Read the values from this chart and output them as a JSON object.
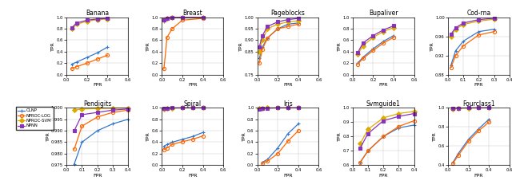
{
  "subplots": [
    {
      "title": "Banana",
      "xlim": [
        0,
        0.6
      ],
      "ylim": [
        0,
        1
      ],
      "xticks": [
        0,
        0.2,
        0.4,
        0.6
      ],
      "yticks": [
        0,
        0.2,
        0.4,
        0.6,
        0.8,
        1.0
      ],
      "series": {
        "OLNP": {
          "x": [
            0.05,
            0.1,
            0.2,
            0.3,
            0.4
          ],
          "y": [
            0.18,
            0.22,
            0.3,
            0.38,
            0.48
          ]
        },
        "NPROC-LOG": {
          "x": [
            0.05,
            0.1,
            0.2,
            0.3,
            0.4
          ],
          "y": [
            0.1,
            0.14,
            0.2,
            0.27,
            0.34
          ]
        },
        "NPROC-SVM": {
          "x": [
            0.05,
            0.1,
            0.2,
            0.3,
            0.4
          ],
          "y": [
            0.8,
            0.88,
            0.93,
            0.96,
            0.97
          ]
        },
        "NPNN": {
          "x": [
            0.05,
            0.1,
            0.2,
            0.3,
            0.4
          ],
          "y": [
            0.82,
            0.9,
            0.95,
            0.97,
            0.98
          ]
        }
      }
    },
    {
      "title": "Breast",
      "xlim": [
        0,
        0.6
      ],
      "ylim": [
        0,
        1
      ],
      "xticks": [
        0,
        0.2,
        0.4,
        0.6
      ],
      "yticks": [
        0,
        0.2,
        0.4,
        0.6,
        0.8,
        1.0
      ],
      "series": {
        "OLNP": {
          "x": [
            0.02,
            0.05,
            0.1,
            0.2,
            0.4
          ],
          "y": [
            0.93,
            0.97,
            0.99,
            0.995,
            0.998
          ]
        },
        "NPROC-LOG": {
          "x": [
            0.02,
            0.05,
            0.1,
            0.2,
            0.4
          ],
          "y": [
            0.1,
            0.65,
            0.8,
            0.95,
            0.98
          ]
        },
        "NPROC-SVM": {
          "x": [
            0.02,
            0.05,
            0.1,
            0.2,
            0.4
          ],
          "y": [
            0.95,
            0.98,
            0.995,
            0.998,
            0.999
          ]
        },
        "NPNN": {
          "x": [
            0.02,
            0.05,
            0.1,
            0.2,
            0.4
          ],
          "y": [
            0.95,
            0.985,
            0.995,
            0.998,
            0.999
          ]
        }
      }
    },
    {
      "title": "Pageblocks",
      "xlim": [
        0,
        0.6
      ],
      "ylim": [
        0.75,
        1.0
      ],
      "xticks": [
        0,
        0.2,
        0.4,
        0.6
      ],
      "yticks": [
        0.75,
        0.85,
        0.9,
        0.95,
        1.0
      ],
      "series": {
        "OLNP": {
          "x": [
            0.02,
            0.05,
            0.1,
            0.2,
            0.3,
            0.4
          ],
          "y": [
            0.82,
            0.87,
            0.91,
            0.95,
            0.97,
            0.975
          ]
        },
        "NPROC-LOG": {
          "x": [
            0.02,
            0.05,
            0.1,
            0.2,
            0.3,
            0.4
          ],
          "y": [
            0.8,
            0.86,
            0.91,
            0.95,
            0.96,
            0.97
          ]
        },
        "NPROC-SVM": {
          "x": [
            0.02,
            0.05,
            0.1,
            0.2,
            0.3,
            0.4
          ],
          "y": [
            0.85,
            0.9,
            0.95,
            0.97,
            0.98,
            0.985
          ]
        },
        "NPNN": {
          "x": [
            0.02,
            0.05,
            0.1,
            0.2,
            0.3,
            0.4
          ],
          "y": [
            0.87,
            0.92,
            0.96,
            0.98,
            0.99,
            0.995
          ]
        }
      }
    },
    {
      "title": "Bupaliver",
      "xlim": [
        0,
        0.6
      ],
      "ylim": [
        0,
        1.0
      ],
      "xticks": [
        0,
        0.2,
        0.4,
        0.6
      ],
      "yticks": [
        0,
        0.2,
        0.4,
        0.6,
        0.8,
        1.0
      ],
      "series": {
        "OLNP": {
          "x": [
            0.05,
            0.1,
            0.2,
            0.3,
            0.4
          ],
          "y": [
            0.2,
            0.3,
            0.45,
            0.58,
            0.68
          ]
        },
        "NPROC-LOG": {
          "x": [
            0.05,
            0.1,
            0.2,
            0.3,
            0.4
          ],
          "y": [
            0.18,
            0.28,
            0.42,
            0.55,
            0.65
          ]
        },
        "NPROC-SVM": {
          "x": [
            0.05,
            0.1,
            0.2,
            0.3,
            0.4
          ],
          "y": [
            0.35,
            0.5,
            0.65,
            0.75,
            0.82
          ]
        },
        "NPNN": {
          "x": [
            0.05,
            0.1,
            0.2,
            0.3,
            0.4
          ],
          "y": [
            0.38,
            0.55,
            0.68,
            0.78,
            0.85
          ]
        }
      }
    },
    {
      "title": "Cod-rna",
      "xlim": [
        0,
        0.4
      ],
      "ylim": [
        0.88,
        1.0
      ],
      "xticks": [
        0,
        0.1,
        0.2,
        0.3,
        0.4
      ],
      "yticks": [
        0.88,
        0.92,
        0.96,
        1.0
      ],
      "series": {
        "OLNP": {
          "x": [
            0.02,
            0.05,
            0.1,
            0.2,
            0.3
          ],
          "y": [
            0.9,
            0.93,
            0.95,
            0.97,
            0.975
          ]
        },
        "NPROC-LOG": {
          "x": [
            0.02,
            0.05,
            0.1,
            0.2,
            0.3
          ],
          "y": [
            0.895,
            0.92,
            0.94,
            0.963,
            0.97
          ]
        },
        "NPROC-SVM": {
          "x": [
            0.02,
            0.05,
            0.1,
            0.2,
            0.3
          ],
          "y": [
            0.96,
            0.975,
            0.985,
            0.992,
            0.996
          ]
        },
        "NPNN": {
          "x": [
            0.02,
            0.05,
            0.1,
            0.2,
            0.3
          ],
          "y": [
            0.965,
            0.978,
            0.988,
            0.995,
            0.998
          ]
        }
      }
    },
    {
      "title": "Pendigits",
      "xlim": [
        0,
        0.4
      ],
      "ylim": [
        0.975,
        1.0
      ],
      "xticks": [
        0,
        0.1,
        0.2,
        0.3,
        0.4
      ],
      "yticks": [
        0.975,
        0.98,
        0.985,
        0.99,
        0.995,
        1.0
      ],
      "series": {
        "OLNP": {
          "x": [
            0.05,
            0.1,
            0.2,
            0.3,
            0.4
          ],
          "y": [
            0.9755,
            0.985,
            0.99,
            0.993,
            0.995
          ]
        },
        "NPROC-LOG": {
          "x": [
            0.05,
            0.1,
            0.2,
            0.3,
            0.4
          ],
          "y": [
            0.982,
            0.992,
            0.996,
            0.998,
            0.999
          ]
        },
        "NPROC-SVM": {
          "x": [
            0.05,
            0.1,
            0.2,
            0.3,
            0.4
          ],
          "y": [
            0.999,
            0.9995,
            0.9997,
            0.9998,
            0.9999
          ]
        },
        "NPNN": {
          "x": [
            0.05,
            0.1,
            0.2,
            0.3,
            0.4
          ],
          "y": [
            0.99,
            0.997,
            0.998,
            0.999,
            0.9995
          ]
        }
      }
    },
    {
      "title": "Spiral",
      "xlim": [
        0,
        0.6
      ],
      "ylim": [
        0,
        1
      ],
      "xticks": [
        0,
        0.2,
        0.4,
        0.6
      ],
      "yticks": [
        0,
        0.2,
        0.4,
        0.6,
        0.8,
        1.0
      ],
      "series": {
        "OLNP": {
          "x": [
            0.02,
            0.05,
            0.1,
            0.2,
            0.3,
            0.4
          ],
          "y": [
            0.33,
            0.36,
            0.4,
            0.45,
            0.5,
            0.57
          ]
        },
        "NPROC-LOG": {
          "x": [
            0.02,
            0.05,
            0.1,
            0.2,
            0.3,
            0.4
          ],
          "y": [
            0.27,
            0.3,
            0.36,
            0.41,
            0.45,
            0.51
          ]
        },
        "NPROC-SVM": {
          "x": [
            0.02,
            0.05,
            0.1,
            0.2,
            0.3,
            0.4
          ],
          "y": [
            0.98,
            0.99,
            0.995,
            0.998,
            0.999,
            1.0
          ]
        },
        "NPNN": {
          "x": [
            0.02,
            0.05,
            0.1,
            0.2,
            0.3,
            0.4
          ],
          "y": [
            0.995,
            0.997,
            0.998,
            0.999,
            0.999,
            1.0
          ]
        }
      }
    },
    {
      "title": "Iris",
      "xlim": [
        0,
        0.6
      ],
      "ylim": [
        0,
        1
      ],
      "xticks": [
        0,
        0.2,
        0.4,
        0.6
      ],
      "yticks": [
        0,
        0.2,
        0.4,
        0.6,
        0.8,
        1.0
      ],
      "series": {
        "OLNP": {
          "x": [
            0.05,
            0.1,
            0.2,
            0.3,
            0.4
          ],
          "y": [
            0.05,
            0.1,
            0.3,
            0.55,
            0.72
          ]
        },
        "NPROC-LOG": {
          "x": [
            0.05,
            0.1,
            0.2,
            0.3,
            0.4
          ],
          "y": [
            0.03,
            0.07,
            0.2,
            0.42,
            0.6
          ]
        },
        "NPROC-SVM": {
          "x": [
            0.02,
            0.05,
            0.1,
            0.2,
            0.3,
            0.4
          ],
          "y": [
            0.99,
            0.995,
            0.998,
            0.999,
            0.9995,
            1.0
          ]
        },
        "NPNN": {
          "x": [
            0.02,
            0.05,
            0.1,
            0.2,
            0.3,
            0.4
          ],
          "y": [
            0.98,
            0.99,
            0.995,
            0.998,
            0.999,
            1.0
          ]
        }
      }
    },
    {
      "title": "Svmguide1",
      "xlim": [
        0,
        0.4
      ],
      "ylim": [
        0.6,
        1.0
      ],
      "xticks": [
        0,
        0.1,
        0.2,
        0.3,
        0.4
      ],
      "yticks": [
        0.6,
        0.7,
        0.8,
        0.9,
        1.0
      ],
      "series": {
        "OLNP": {
          "x": [
            0.05,
            0.1,
            0.2,
            0.3,
            0.4
          ],
          "y": [
            0.62,
            0.7,
            0.8,
            0.86,
            0.88
          ]
        },
        "NPROC-LOG": {
          "x": [
            0.05,
            0.1,
            0.2,
            0.3,
            0.4
          ],
          "y": [
            0.62,
            0.7,
            0.8,
            0.87,
            0.91
          ]
        },
        "NPROC-SVM": {
          "x": [
            0.05,
            0.1,
            0.2,
            0.3,
            0.4
          ],
          "y": [
            0.75,
            0.85,
            0.93,
            0.96,
            0.975
          ]
        },
        "NPNN": {
          "x": [
            0.05,
            0.1,
            0.2,
            0.3,
            0.4
          ],
          "y": [
            0.72,
            0.82,
            0.91,
            0.94,
            0.96
          ]
        }
      }
    },
    {
      "title": "Fourclass1",
      "xlim": [
        0,
        0.6
      ],
      "ylim": [
        0.4,
        1.0
      ],
      "xticks": [
        0,
        0.2,
        0.4,
        0.6
      ],
      "yticks": [
        0.4,
        0.6,
        0.8,
        1.0
      ],
      "series": {
        "OLNP": {
          "x": [
            0.05,
            0.1,
            0.2,
            0.3,
            0.4
          ],
          "y": [
            0.43,
            0.52,
            0.67,
            0.78,
            0.88
          ]
        },
        "NPROC-LOG": {
          "x": [
            0.05,
            0.1,
            0.2,
            0.3,
            0.4
          ],
          "y": [
            0.42,
            0.5,
            0.65,
            0.76,
            0.85
          ]
        },
        "NPROC-SVM": {
          "x": [
            0.05,
            0.1,
            0.2,
            0.3,
            0.4
          ],
          "y": [
            0.99,
            0.995,
            0.998,
            0.999,
            0.9995
          ]
        },
        "NPNN": {
          "x": [
            0.05,
            0.1,
            0.2,
            0.3,
            0.4
          ],
          "y": [
            0.995,
            0.997,
            0.999,
            0.9995,
            1.0
          ]
        }
      }
    }
  ],
  "colors": {
    "OLNP": "#3377CC",
    "NPROC-LOG": "#FF6600",
    "NPROC-SVM": "#DDAA00",
    "NPNN": "#8833BB"
  },
  "markers": {
    "OLNP": "+",
    "NPROC-LOG": "o",
    "NPROC-SVM": "D",
    "NPNN": "s"
  }
}
